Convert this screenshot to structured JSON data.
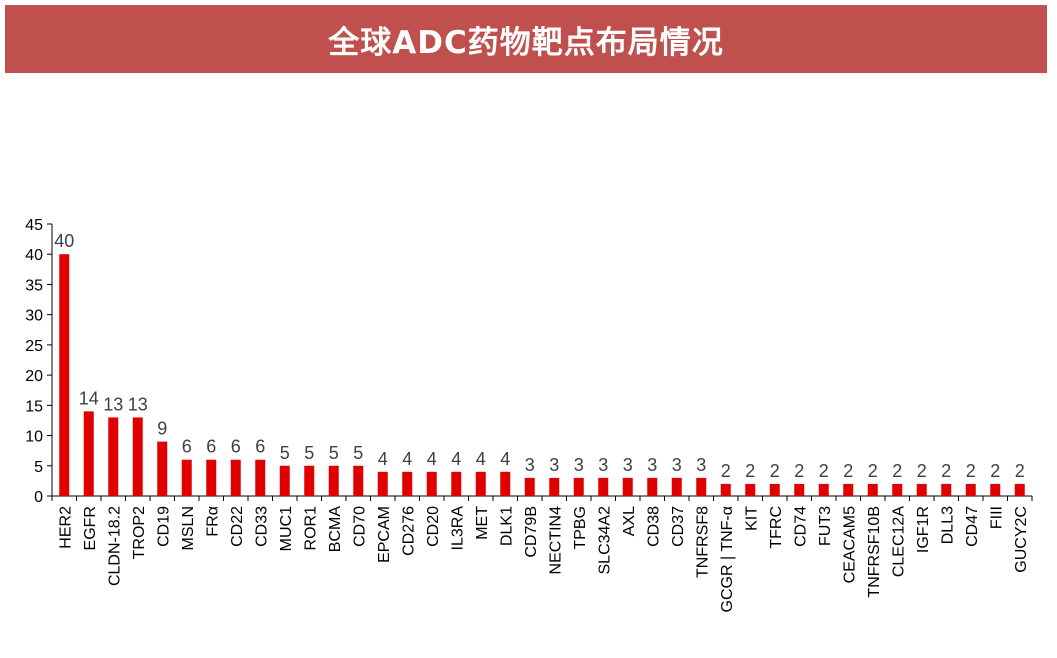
{
  "header": {
    "title": "全球ADC药物靶点布局情况"
  },
  "colors": {
    "header_bg": "#c0504d",
    "bar": "#e00000",
    "data_label": "#404040",
    "axis": "#000000"
  },
  "chart_data": {
    "type": "bar",
    "title": "全球ADC药物靶点布局情况",
    "categories": [
      "HER2",
      "EGFR",
      "CLDN-18.2",
      "TROP2",
      "CD19",
      "MSLN",
      "FRα",
      "CD22",
      "CD33",
      "MUC1",
      "ROR1",
      "BCMA",
      "CD70",
      "EPCAM",
      "CD276",
      "CD20",
      "IL3RA",
      "MET",
      "DLK1",
      "CD79B",
      "NECTIN4",
      "TPBG",
      "SLC34A2",
      "AXL",
      "CD38",
      "CD37",
      "TNFRSF8",
      "GCGR | TNF-α",
      "KIT",
      "TFRC",
      "CD74",
      "FUT3",
      "CEACAM5",
      "TNFRSF10B",
      "CLEC12A",
      "IGF1R",
      "DLL3",
      "CD47",
      "FIII",
      "GUCY2C"
    ],
    "values": [
      40,
      14,
      13,
      13,
      9,
      6,
      6,
      6,
      6,
      5,
      5,
      5,
      5,
      4,
      4,
      4,
      4,
      4,
      4,
      3,
      3,
      3,
      3,
      3,
      3,
      3,
      3,
      2,
      2,
      2,
      2,
      2,
      2,
      2,
      2,
      2,
      2,
      2,
      2,
      2
    ],
    "data_labels": [
      "40",
      "14",
      "13",
      "13",
      "9",
      "6",
      "6",
      "6",
      "6",
      "5",
      "5",
      "5",
      "5",
      "4",
      "4",
      "4",
      "4",
      "4",
      "4",
      "3",
      "3",
      "3",
      "3",
      "3",
      "3",
      "3",
      "3",
      "2",
      "2",
      "2",
      "2",
      "2",
      "2",
      "2",
      "2",
      "2",
      "2",
      "2",
      "2",
      "2"
    ],
    "ylim": [
      0,
      45
    ],
    "yticks": [
      0,
      5,
      10,
      15,
      20,
      25,
      30,
      35,
      40,
      45
    ],
    "ytick_labels": [
      "0",
      "5",
      "10",
      "15",
      "20",
      "25",
      "30",
      "35",
      "40",
      "45"
    ],
    "xlabel": "",
    "ylabel": "",
    "grid": false,
    "legend": "none"
  }
}
